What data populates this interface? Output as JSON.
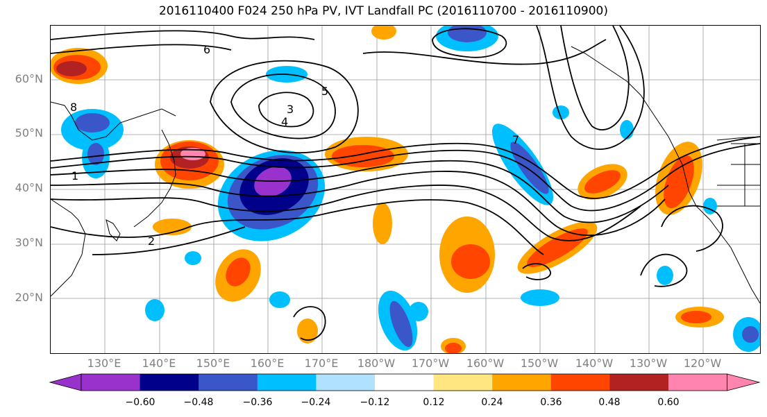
{
  "title": "2016110400 F024 250 hPa PV, IVT Landfall PC (2016110700 - 2016110900)",
  "lat_labels": [
    "60°N",
    "50°N",
    "40°N",
    "30°N",
    "20°N"
  ],
  "lon_labels": [
    "130°E",
    "140°E",
    "150°E",
    "160°E",
    "170°E",
    "180°W",
    "170°W",
    "160°W",
    "150°W",
    "140°W",
    "130°W",
    "120°W"
  ],
  "contour_labels": [
    "1",
    "2",
    "3",
    "4",
    "5",
    "6",
    "7",
    "8"
  ],
  "colorbar": {
    "ticks": [
      "−0.60",
      "−0.48",
      "−0.36",
      "−0.24",
      "−0.12",
      "0.12",
      "0.24",
      "0.36",
      "0.48",
      "0.60"
    ],
    "colors": [
      "#9932cc",
      "#00008b",
      "#3a56c9",
      "#00bfff",
      "#b0e2ff",
      "#ffffff",
      "#ffe680",
      "#ffa500",
      "#ff4500",
      "#b22222",
      "#ff85b0"
    ]
  },
  "shading_colors": {
    "purple": "#9932cc",
    "navy": "#00008b",
    "blue": "#3a56c9",
    "cyan": "#00bfff",
    "lightblue": "#b0e2ff",
    "yellow": "#ffe680",
    "orange": "#ffa500",
    "redorange": "#ff4500",
    "darkred": "#b22222",
    "pink": "#ff85b0"
  }
}
